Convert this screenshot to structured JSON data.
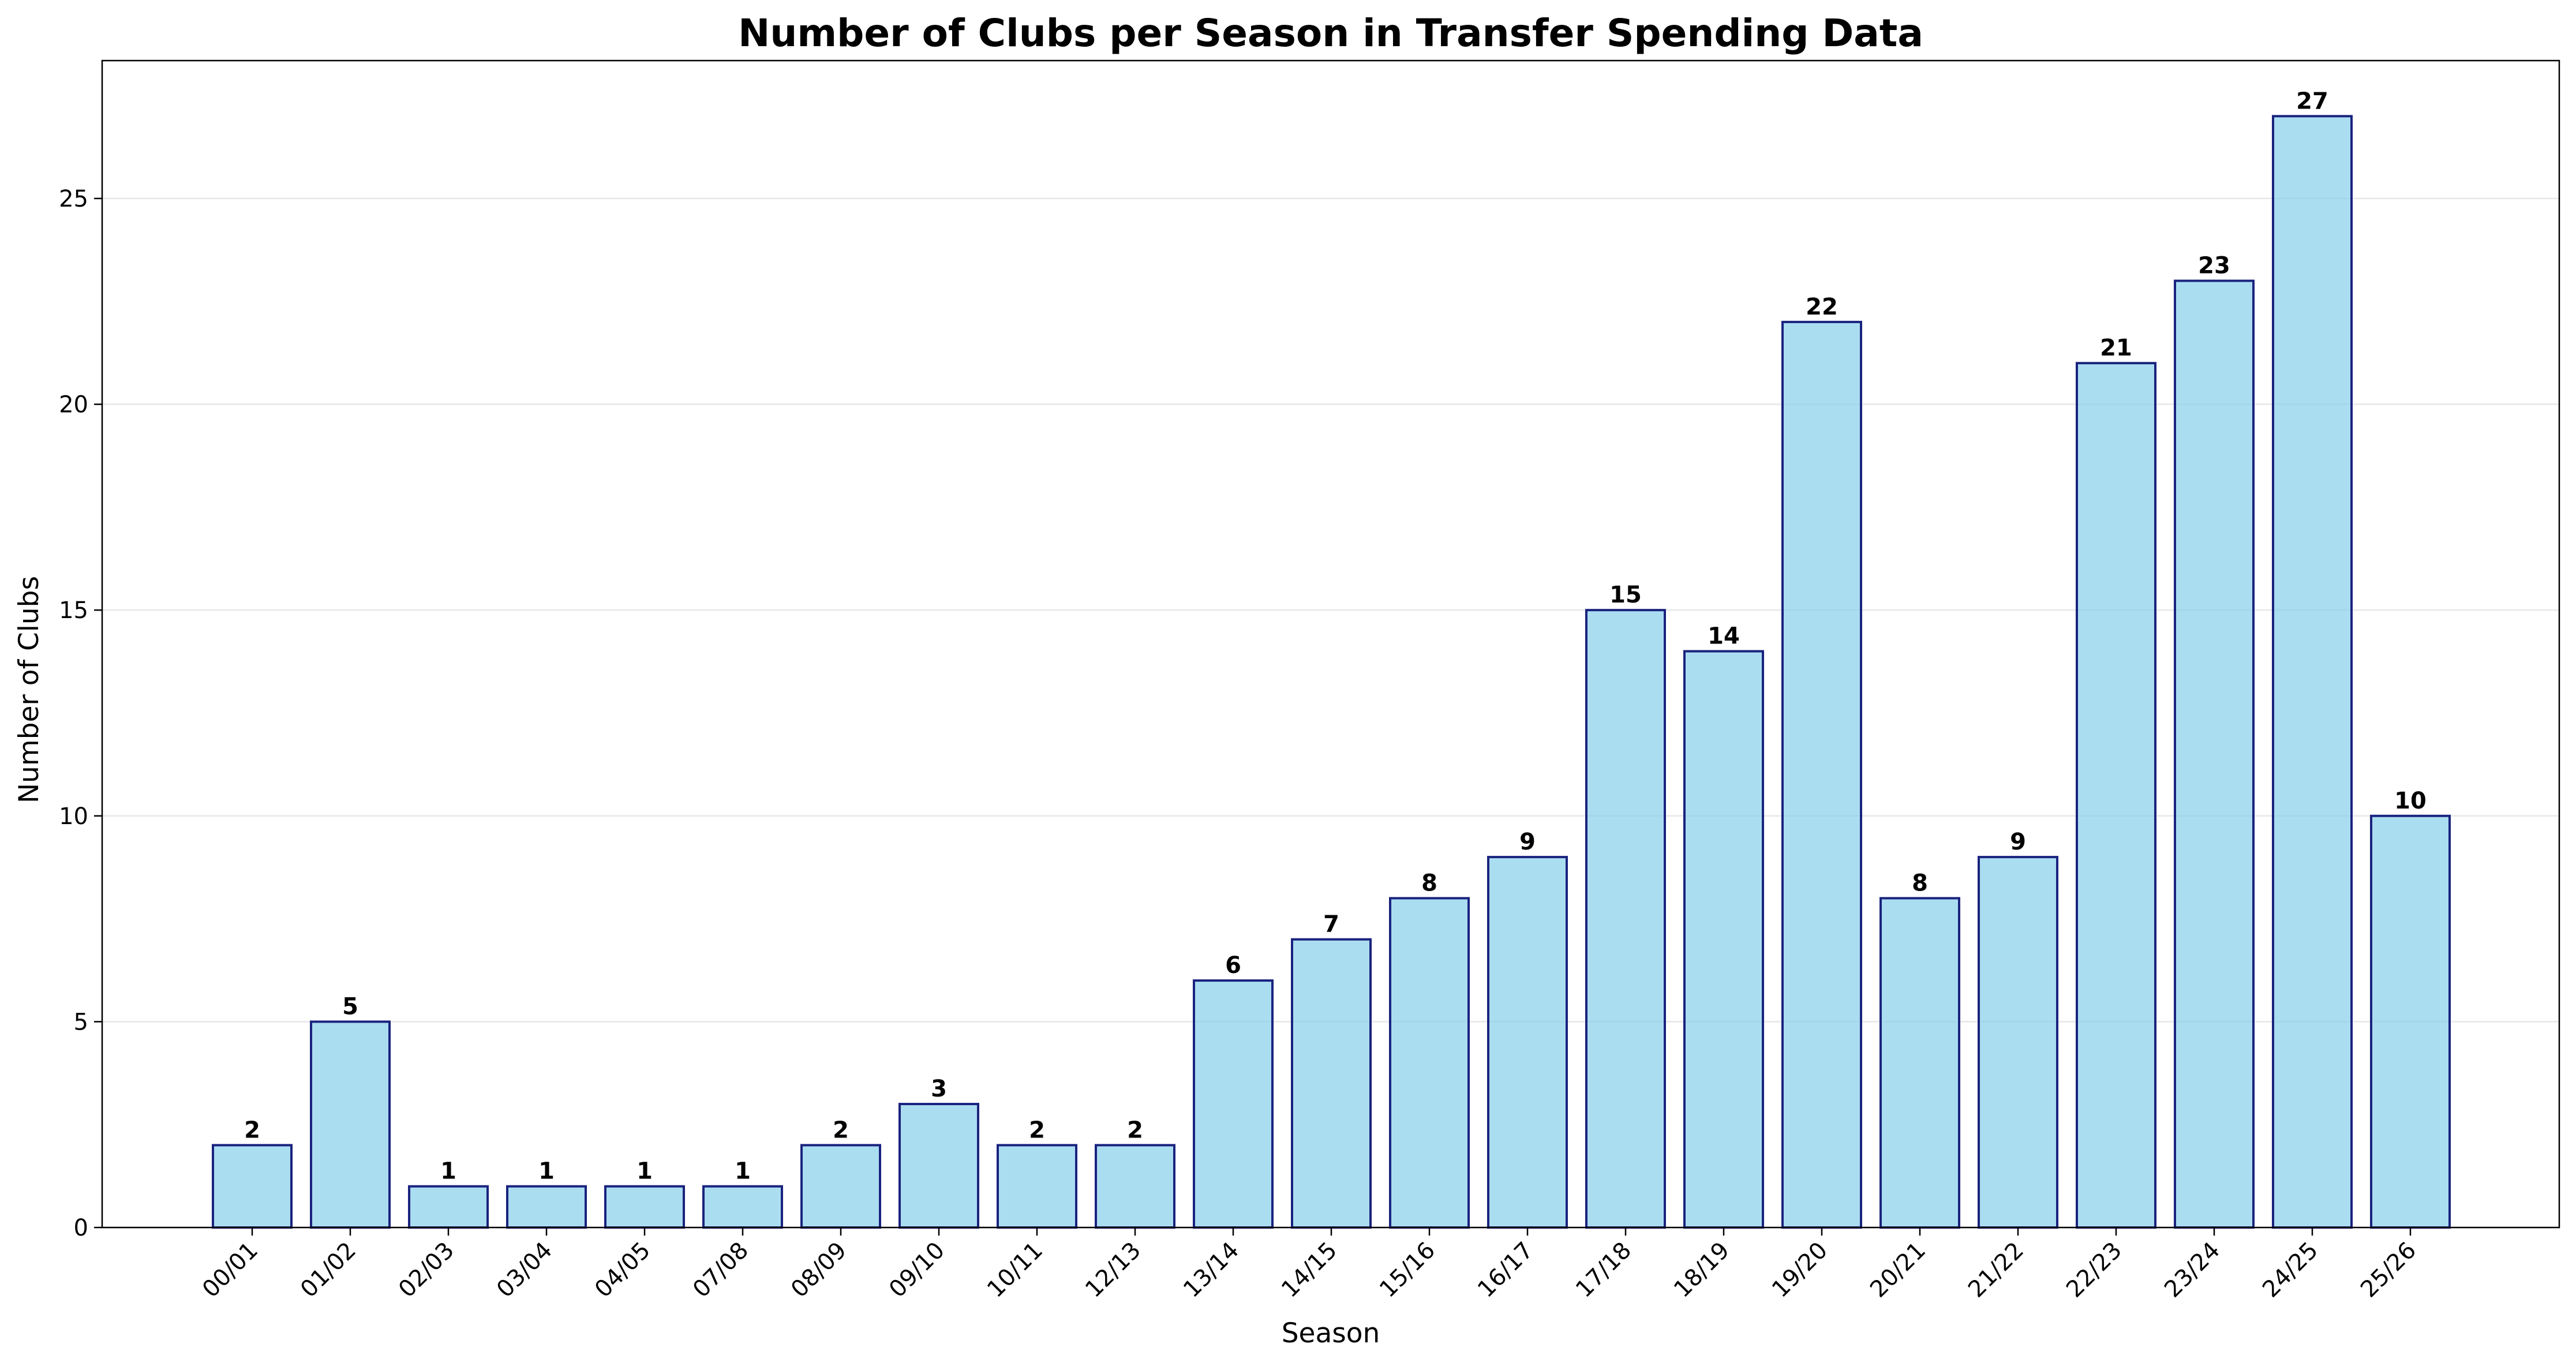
{
  "chart_data": {
    "type": "bar",
    "title": "Number of Clubs per Season in Transfer Spending Data",
    "xlabel": "Season",
    "ylabel": "Number of Clubs",
    "categories": [
      "00/01",
      "01/02",
      "02/03",
      "03/04",
      "04/05",
      "07/08",
      "08/09",
      "09/10",
      "10/11",
      "12/13",
      "13/14",
      "14/15",
      "15/16",
      "16/17",
      "17/18",
      "18/19",
      "19/20",
      "20/21",
      "21/22",
      "22/23",
      "23/24",
      "24/25",
      "25/26"
    ],
    "values": [
      2,
      5,
      1,
      1,
      1,
      1,
      2,
      3,
      2,
      2,
      6,
      7,
      8,
      9,
      15,
      14,
      22,
      8,
      9,
      21,
      23,
      27,
      10
    ],
    "ylim": [
      0,
      28.35
    ],
    "yticks": [
      0,
      5,
      10,
      15,
      20,
      25
    ],
    "grid": "y-axis only",
    "legend": "none",
    "data_labels": true,
    "colors": {
      "bar_fill": "#87ceeb",
      "bar_fill_opacity": 0.7,
      "bar_edge": "#1a237e"
    }
  }
}
